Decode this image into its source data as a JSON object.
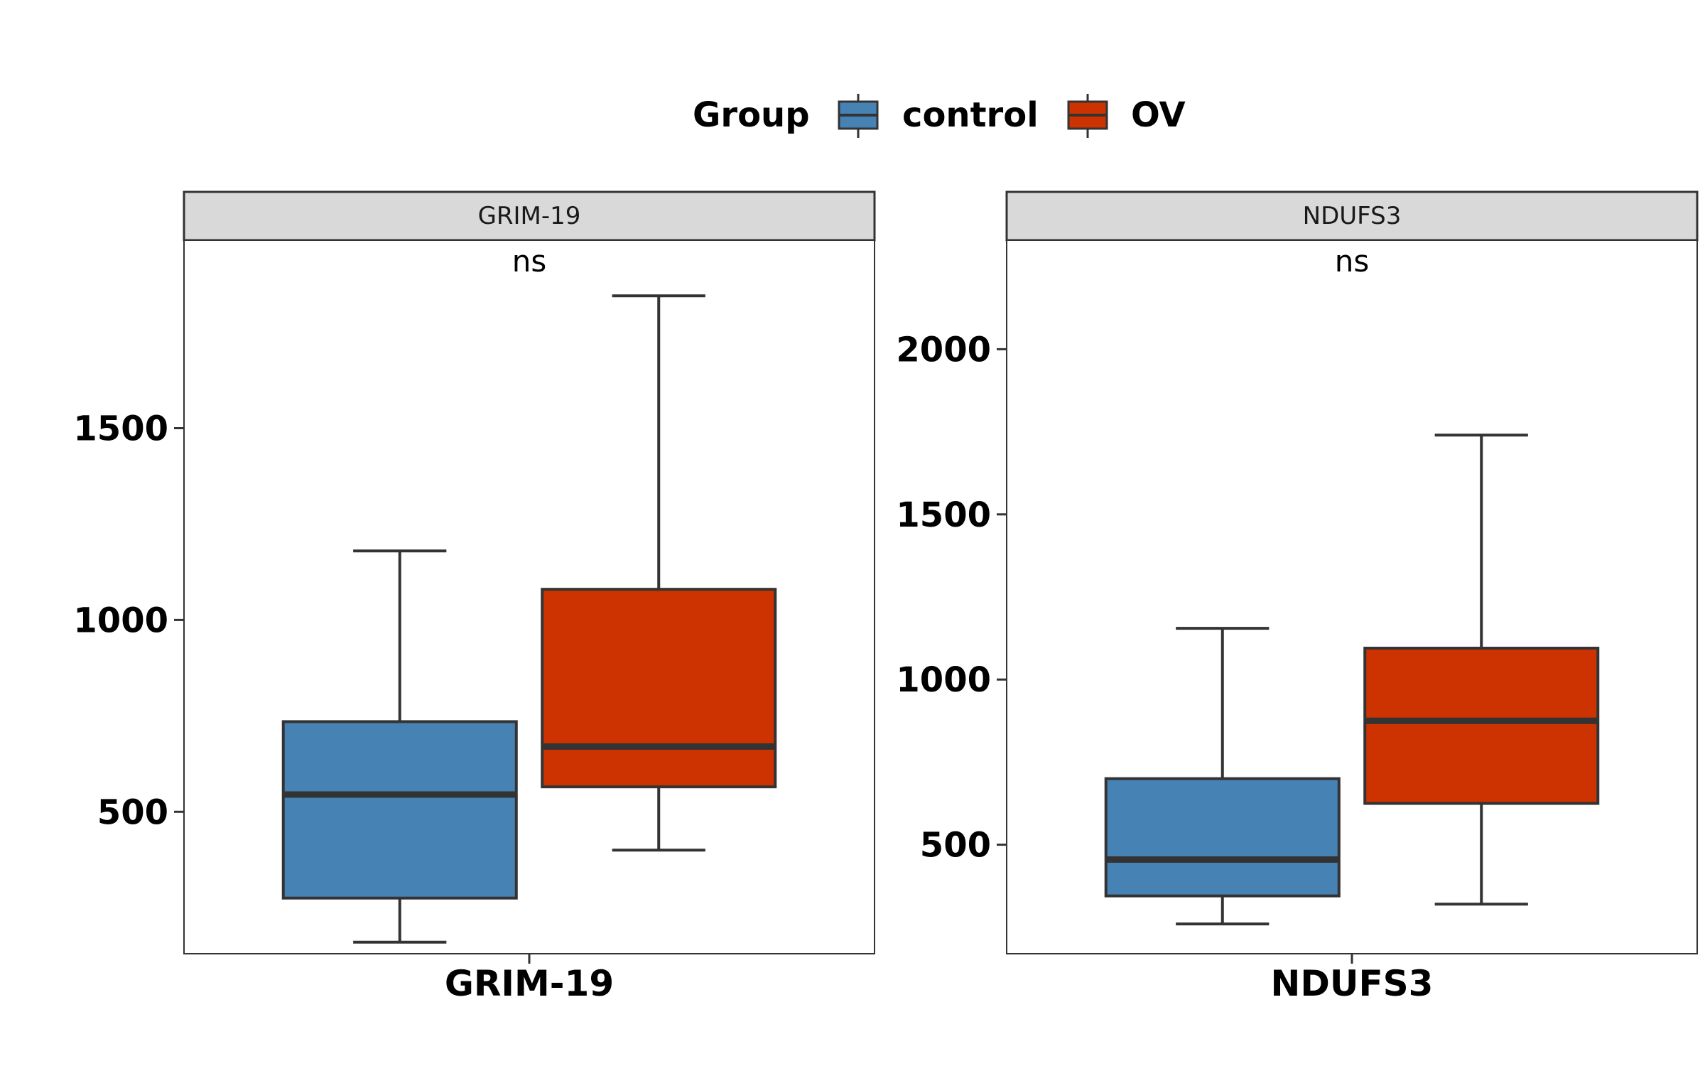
{
  "legend": {
    "title": "Group",
    "items": [
      {
        "label": "control",
        "color": "#4682B4"
      },
      {
        "label": "OV",
        "color": "#CC3300"
      }
    ]
  },
  "colors": {
    "box_stroke": "#333333",
    "strip_fill": "#D9D9D9"
  },
  "chart_data": [
    {
      "type": "boxplot",
      "strip_label": "GRIM-19",
      "x_tick_label": "GRIM-19",
      "annotation": "ns",
      "ylim": [
        130,
        1990
      ],
      "y_ticks": [
        500,
        1000,
        1500
      ],
      "series": [
        {
          "name": "control",
          "whisker_low": 160,
          "q1": 275,
          "median": 545,
          "q3": 735,
          "whisker_high": 1180
        },
        {
          "name": "OV",
          "whisker_low": 400,
          "q1": 565,
          "median": 670,
          "q3": 1080,
          "whisker_high": 1845
        }
      ]
    },
    {
      "type": "boxplot",
      "strip_label": "NDUFS3",
      "x_tick_label": "NDUFS3",
      "annotation": "ns",
      "ylim": [
        170,
        2330
      ],
      "y_ticks": [
        500,
        1000,
        1500,
        2000
      ],
      "series": [
        {
          "name": "control",
          "whisker_low": 260,
          "q1": 345,
          "median": 455,
          "q3": 700,
          "whisker_high": 1155
        },
        {
          "name": "OV",
          "whisker_low": 320,
          "q1": 625,
          "median": 875,
          "q3": 1095,
          "whisker_high": 1740
        }
      ]
    }
  ]
}
